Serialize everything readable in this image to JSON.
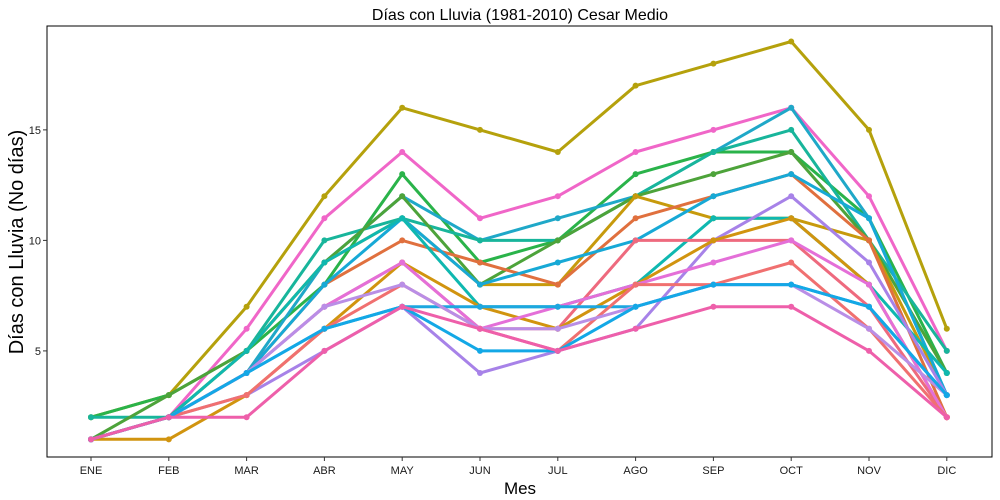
{
  "chart_data": {
    "type": "line",
    "title": "Días con Lluvia (1981-2010)  Cesar Medio",
    "xlabel": "Mes",
    "ylabel": "Días con Lluvia (No días)",
    "categories": [
      "ENE",
      "FEB",
      "MAR",
      "ABR",
      "MAY",
      "JUN",
      "JUL",
      "AGO",
      "SEP",
      "OCT",
      "NOV",
      "DIC"
    ],
    "yticks": [
      5,
      10,
      15
    ],
    "ylim": [
      0.2,
      19.7
    ],
    "grid": false,
    "legend": "none",
    "series": [
      {
        "color": "#b5a10c",
        "values": [
          2,
          3,
          7,
          12,
          16,
          15,
          14,
          17,
          18,
          19,
          15,
          6
        ]
      },
      {
        "color": "#f066c8",
        "values": [
          1,
          2,
          6,
          11,
          14,
          11,
          12,
          14,
          15,
          16,
          12,
          5
        ]
      },
      {
        "color": "#2ab34a",
        "values": [
          2,
          3,
          5,
          8,
          13,
          9,
          10,
          13,
          14,
          14,
          11,
          4
        ]
      },
      {
        "color": "#1fa8c8",
        "values": [
          1,
          2,
          4,
          9,
          12,
          10,
          11,
          12,
          14,
          16,
          11,
          3
        ]
      },
      {
        "color": "#18b59b",
        "values": [
          2,
          2,
          5,
          10,
          11,
          10,
          10,
          12,
          14,
          15,
          10,
          5
        ]
      },
      {
        "color": "#4da33a",
        "values": [
          1,
          3,
          5,
          9,
          12,
          8,
          10,
          12,
          13,
          14,
          10,
          4
        ]
      },
      {
        "color": "#c79a0c",
        "values": [
          1,
          2,
          5,
          9,
          11,
          8,
          8,
          12,
          11,
          11,
          10,
          3
        ]
      },
      {
        "color": "#e0703e",
        "values": [
          1,
          2,
          4,
          8,
          10,
          9,
          8,
          11,
          12,
          13,
          10,
          2
        ]
      },
      {
        "color": "#17a9d6",
        "values": [
          1,
          2,
          4,
          8,
          11,
          8,
          9,
          10,
          12,
          13,
          11,
          3
        ]
      },
      {
        "color": "#0fb8b0",
        "values": [
          1,
          2,
          5,
          9,
          11,
          7,
          7,
          8,
          11,
          11,
          8,
          4
        ]
      },
      {
        "color": "#a782e8",
        "values": [
          1,
          2,
          3,
          5,
          7,
          4,
          5,
          6,
          10,
          12,
          9,
          3
        ]
      },
      {
        "color": "#ee6a7e",
        "values": [
          1,
          2,
          4,
          7,
          9,
          6,
          6,
          10,
          10,
          10,
          7,
          2
        ]
      },
      {
        "color": "#d1940f",
        "values": [
          1,
          1,
          3,
          6,
          9,
          7,
          6,
          8,
          10,
          11,
          8,
          2
        ]
      },
      {
        "color": "#e46fd8",
        "values": [
          1,
          2,
          4,
          7,
          9,
          6,
          7,
          8,
          9,
          10,
          8,
          2
        ]
      },
      {
        "color": "#1da7e0",
        "values": [
          1,
          2,
          4,
          6,
          7,
          7,
          7,
          7,
          8,
          8,
          7,
          3
        ]
      },
      {
        "color": "#f07070",
        "values": [
          1,
          2,
          3,
          6,
          8,
          6,
          5,
          8,
          8,
          9,
          6,
          2
        ]
      },
      {
        "color": "#b98ee6",
        "values": [
          1,
          2,
          4,
          7,
          8,
          6,
          6,
          7,
          8,
          8,
          6,
          3
        ]
      },
      {
        "color": "#13a8e6",
        "values": [
          1,
          2,
          4,
          6,
          7,
          5,
          5,
          7,
          8,
          8,
          7,
          3
        ]
      },
      {
        "color": "#ee5faa",
        "values": [
          1,
          2,
          2,
          5,
          7,
          6,
          5,
          6,
          7,
          7,
          5,
          2
        ]
      }
    ]
  }
}
